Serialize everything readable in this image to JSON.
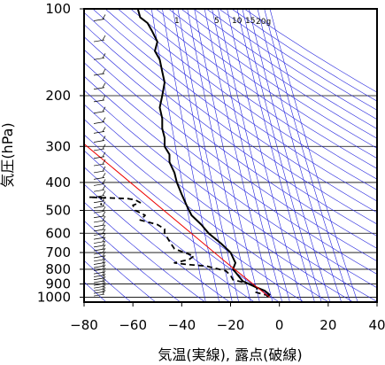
{
  "chart_data": {
    "type": "line",
    "xlabel": "気温(実線), 露点(破線)",
    "ylabel": "気圧(hPa)",
    "x_ticks": [
      "−80",
      "−60",
      "−40",
      "−20",
      "0",
      "20",
      "40"
    ],
    "y_ticks": [
      "100",
      "200",
      "300",
      "400",
      "500",
      "600",
      "700",
      "800",
      "900",
      "1000"
    ],
    "x_range": [
      -80,
      40
    ],
    "y_range_hpa": [
      1040,
      100
    ],
    "y_scale": "log",
    "mixing_ratio_labels": [
      "1",
      "5",
      "10",
      "15",
      "20g"
    ],
    "series": [
      {
        "role": "temperature",
        "style": "solid",
        "points": [
          [
            -5,
            1000
          ],
          [
            -4,
            980
          ],
          [
            -6,
            950
          ],
          [
            -10,
            920
          ],
          [
            -15,
            880
          ],
          [
            -19,
            800
          ],
          [
            -18,
            760
          ],
          [
            -19,
            730
          ],
          [
            -20,
            700
          ],
          [
            -24,
            650
          ],
          [
            -29,
            600
          ],
          [
            -32,
            560
          ],
          [
            -36,
            520
          ],
          [
            -38,
            480
          ],
          [
            -40,
            440
          ],
          [
            -42,
            400
          ],
          [
            -43,
            370
          ],
          [
            -45,
            340
          ],
          [
            -45,
            320
          ],
          [
            -47,
            300
          ],
          [
            -47,
            280
          ],
          [
            -48,
            260
          ],
          [
            -48,
            240
          ],
          [
            -49,
            220
          ],
          [
            -48,
            200
          ],
          [
            -47,
            180
          ],
          [
            -48,
            165
          ],
          [
            -49,
            150
          ],
          [
            -51,
            140
          ],
          [
            -50,
            130
          ],
          [
            -52,
            120
          ],
          [
            -54,
            112
          ],
          [
            -57,
            107
          ],
          [
            -58,
            100
          ]
        ]
      },
      {
        "role": "dewpoint",
        "style": "dashed",
        "points": [
          [
            -5,
            1000
          ],
          [
            -5,
            985
          ],
          [
            -10,
            960
          ],
          [
            -9,
            930
          ],
          [
            -12,
            900
          ],
          [
            -19,
            870
          ],
          [
            -20,
            840
          ],
          [
            -22,
            810
          ],
          [
            -30,
            780
          ],
          [
            -38,
            770
          ],
          [
            -43,
            760
          ],
          [
            -37,
            740
          ],
          [
            -35,
            720
          ],
          [
            -43,
            680
          ],
          [
            -45,
            640
          ],
          [
            -47,
            600
          ],
          [
            -47,
            580
          ],
          [
            -50,
            560
          ],
          [
            -57,
            540
          ],
          [
            -55,
            520
          ],
          [
            -59,
            500
          ],
          [
            -60,
            480
          ],
          [
            -57,
            470
          ],
          [
            -59,
            460
          ],
          [
            -62,
            455
          ],
          [
            -78,
            450
          ],
          [
            -73,
            450
          ],
          [
            -73,
            480
          ]
        ]
      },
      {
        "role": "parcel",
        "style": "solid-red",
        "points": [
          [
            -4,
            1000
          ],
          [
            -20,
            780
          ],
          [
            -83,
            280
          ]
        ]
      }
    ]
  }
}
